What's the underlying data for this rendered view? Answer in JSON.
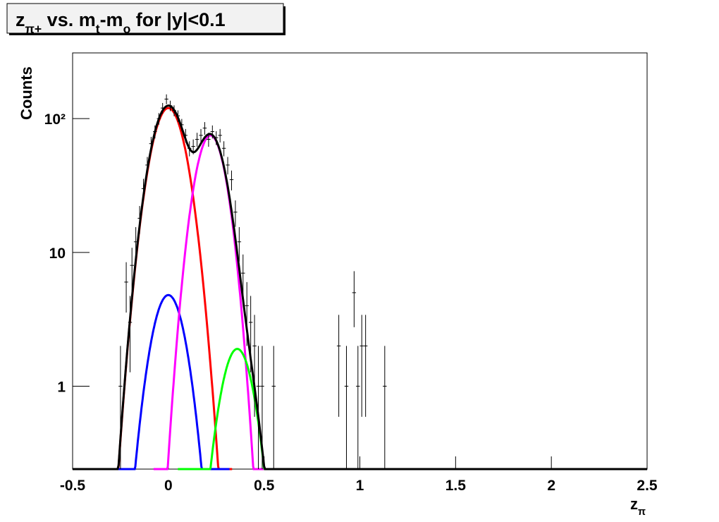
{
  "chart_data": {
    "type": "histogram-fit",
    "title": [
      {
        "text": "z"
      },
      {
        "text": "π+",
        "sub": true
      },
      {
        "text": " vs. m"
      },
      {
        "text": "t",
        "sub": true
      },
      {
        "text": "-m"
      },
      {
        "text": "o",
        "sub": true
      },
      {
        "text": " for |y|<0.1"
      }
    ],
    "x_label": [
      {
        "text": "z"
      },
      {
        "text": "π",
        "sub": true
      }
    ],
    "y_label": "Counts",
    "xlim": [
      -0.5,
      2.5
    ],
    "ylim": [
      0.24,
      310
    ],
    "log_y": true,
    "xticks": [
      -0.5,
      0,
      0.5,
      1,
      1.5,
      2,
      2.5
    ],
    "yticks": [
      1,
      10,
      {
        "value": 100,
        "label": "10²"
      }
    ],
    "bin_width": 0.02,
    "point_color": "#000000",
    "x": [
      -0.25,
      -0.22,
      -0.2,
      -0.19,
      -0.17,
      -0.15,
      -0.13,
      -0.11,
      -0.09,
      -0.07,
      -0.05,
      -0.03,
      -0.01,
      0.01,
      0.03,
      0.05,
      0.07,
      0.09,
      0.11,
      0.13,
      0.15,
      0.17,
      0.19,
      0.21,
      0.23,
      0.25,
      0.27,
      0.29,
      0.31,
      0.33,
      0.35,
      0.37,
      0.39,
      0.41,
      0.43,
      0.45,
      0.47,
      0.49,
      0.55,
      0.89,
      0.93,
      0.97,
      0.99,
      1.01,
      1.03,
      1.13
    ],
    "values": [
      1,
      6,
      3,
      8,
      12,
      18,
      30,
      45,
      65,
      80,
      100,
      120,
      140,
      125,
      115,
      105,
      90,
      75,
      60,
      62,
      70,
      75,
      85,
      70,
      80,
      72,
      75,
      60,
      45,
      35,
      20,
      12,
      7,
      4,
      3,
      2,
      1,
      1,
      1,
      2,
      1,
      5,
      1,
      2,
      2,
      1
    ],
    "errors": [
      1,
      2.45,
      1.73,
      2.83,
      3.46,
      4.24,
      5.48,
      6.71,
      8.06,
      8.94,
      10,
      10.95,
      11.83,
      11.18,
      10.72,
      10.25,
      9.49,
      8.66,
      7.75,
      7.87,
      8.37,
      8.66,
      9.22,
      8.37,
      8.94,
      8.49,
      8.66,
      7.75,
      6.71,
      5.92,
      4.47,
      3.46,
      2.65,
      2,
      1.73,
      1.41,
      1,
      1,
      1,
      1.41,
      1,
      2.24,
      1,
      1.41,
      1.41,
      1
    ],
    "fits": [
      {
        "color": "#ff0000",
        "amplitude": 120,
        "mean": 0,
        "sigma": 0.074
      },
      {
        "color": "#0000ff",
        "amplitude": 4.8,
        "mean": 0,
        "sigma": 0.071
      },
      {
        "color": "#ff00ff",
        "amplitude": 75,
        "mean": 0.22,
        "sigma": 0.066
      },
      {
        "color": "#00ff00",
        "amplitude": 1.9,
        "mean": 0.36,
        "sigma": 0.069
      }
    ],
    "total_color": "#000000"
  }
}
